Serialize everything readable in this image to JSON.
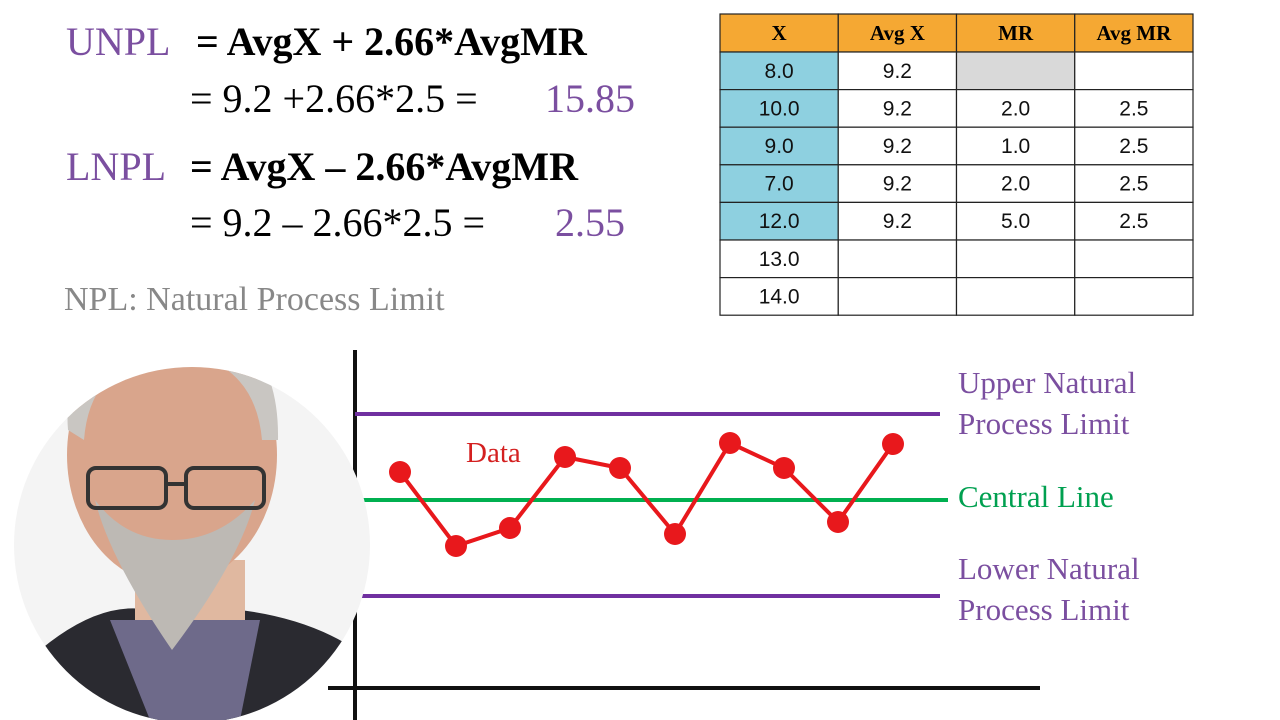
{
  "formulas": {
    "unpl": {
      "label": "UNPL",
      "equation": "= AvgX + 2.66*AvgMR",
      "calculation": "= 9.2 +2.66*2.5 =",
      "result": "15.85"
    },
    "lnpl": {
      "label": "LNPL",
      "equation": "= AvgX – 2.66*AvgMR",
      "calculation": "= 9.2 – 2.66*2.5 =",
      "result": "2.55"
    }
  },
  "note": "NPL: Natural Process Limit",
  "table": {
    "header": [
      "X",
      "Avg X",
      "MR",
      "Avg MR"
    ],
    "rows": [
      [
        "8.0",
        "9.2",
        null,
        null
      ],
      [
        "10.0",
        "9.2",
        "2.0",
        "2.5"
      ],
      [
        "9.0",
        "9.2",
        "1.0",
        "2.5"
      ],
      [
        "7.0",
        "9.2",
        "2.0",
        "2.5"
      ],
      [
        "12.0",
        "9.2",
        "5.0",
        "2.5"
      ],
      [
        "13.0",
        null,
        null,
        null
      ],
      [
        "14.0",
        null,
        null,
        null
      ]
    ]
  },
  "diagram": {
    "data_label": "Data",
    "upper": [
      "Upper Natural",
      "Process Limit"
    ],
    "center": "Central Line",
    "lower": [
      "Lower Natural",
      "Process Limit"
    ]
  }
}
